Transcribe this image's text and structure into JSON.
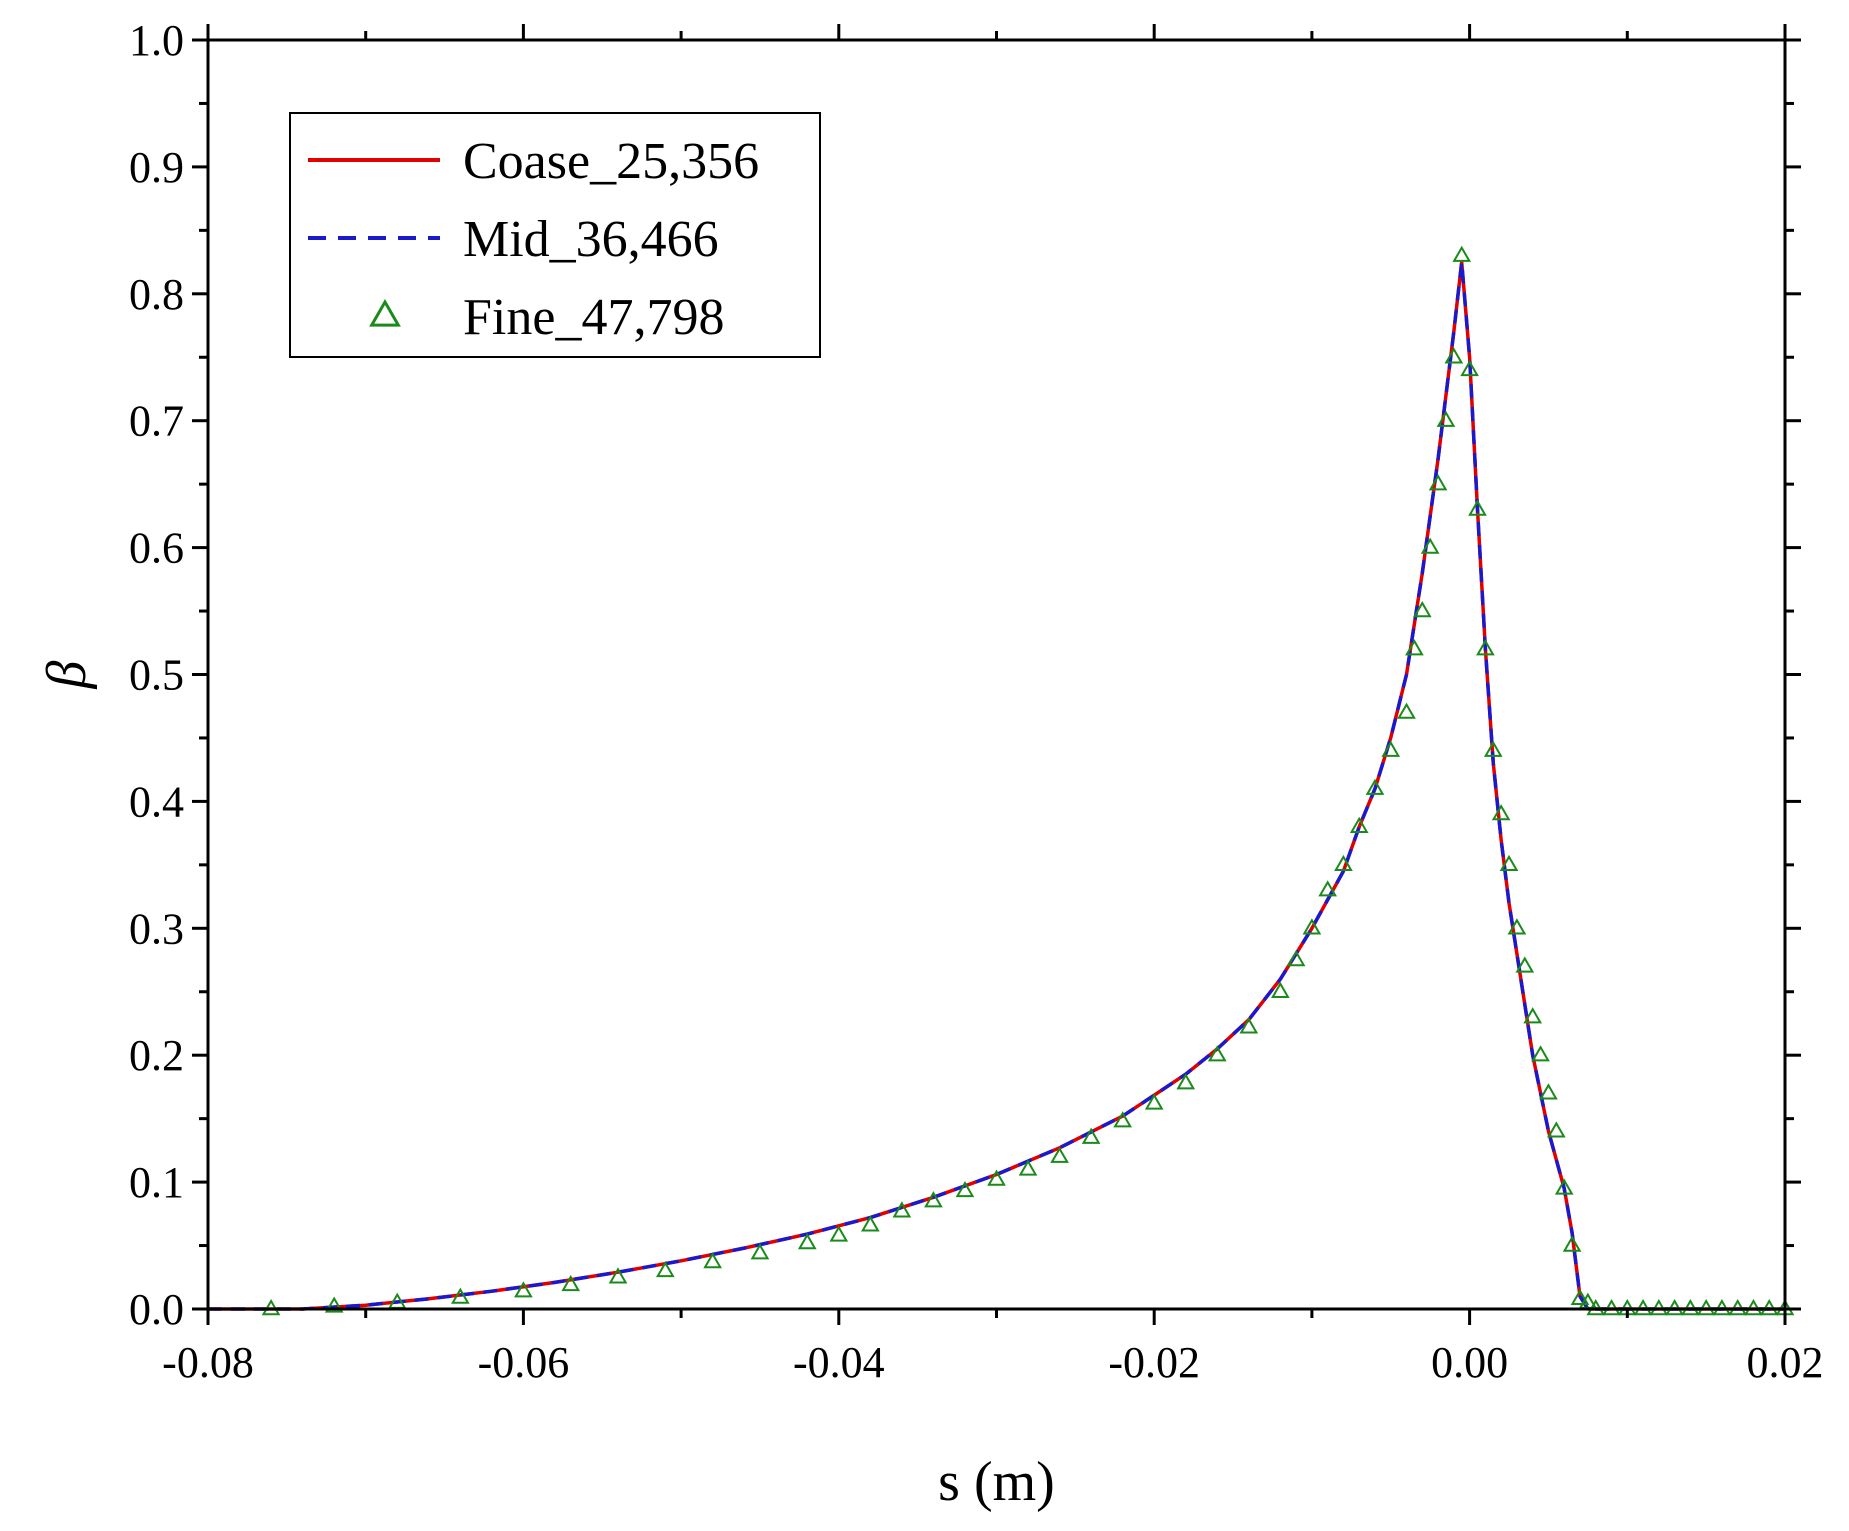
{
  "chart_data": {
    "type": "line",
    "title": "",
    "xlabel": "s (m)",
    "ylabel": "β",
    "xlim": [
      -0.08,
      0.02
    ],
    "ylim": [
      0.0,
      1.0
    ],
    "x_ticks": [
      -0.08,
      -0.06,
      -0.04,
      -0.02,
      0.0,
      0.02
    ],
    "x_tick_labels": [
      "-0.08",
      "-0.06",
      "-0.04",
      "-0.02",
      "0.00",
      "0.02"
    ],
    "y_ticks": [
      0.0,
      0.1,
      0.2,
      0.3,
      0.4,
      0.5,
      0.6,
      0.7,
      0.8,
      0.9,
      1.0
    ],
    "y_tick_labels": [
      "0.0",
      "0.1",
      "0.2",
      "0.3",
      "0.4",
      "0.5",
      "0.6",
      "0.7",
      "0.8",
      "0.9",
      "1.0"
    ],
    "grid": false,
    "legend_position": "top-left",
    "series": [
      {
        "name": "Coase_25,356",
        "style": "solid line",
        "color": "#e00000",
        "x": [
          -0.08,
          -0.074,
          -0.07,
          -0.066,
          -0.062,
          -0.058,
          -0.054,
          -0.05,
          -0.046,
          -0.042,
          -0.038,
          -0.034,
          -0.03,
          -0.026,
          -0.022,
          -0.018,
          -0.016,
          -0.014,
          -0.012,
          -0.01,
          -0.008,
          -0.007,
          -0.006,
          -0.005,
          -0.004,
          -0.003,
          -0.002,
          -0.001,
          -0.0005,
          0.0,
          0.0005,
          0.001,
          0.0015,
          0.002,
          0.0025,
          0.003,
          0.004,
          0.005,
          0.006,
          0.0065,
          0.007,
          0.0075,
          0.008,
          0.01,
          0.015,
          0.02
        ],
        "y": [
          0.0,
          0.0,
          0.003,
          0.008,
          0.014,
          0.021,
          0.029,
          0.038,
          0.048,
          0.059,
          0.072,
          0.088,
          0.106,
          0.127,
          0.152,
          0.185,
          0.205,
          0.228,
          0.26,
          0.3,
          0.345,
          0.38,
          0.41,
          0.45,
          0.5,
          0.58,
          0.67,
          0.77,
          0.825,
          0.75,
          0.63,
          0.52,
          0.43,
          0.37,
          0.32,
          0.28,
          0.2,
          0.14,
          0.095,
          0.06,
          0.01,
          0.0,
          0.0,
          0.0,
          0.0,
          0.0
        ]
      },
      {
        "name": "Mid_36,466",
        "style": "dashed line",
        "color": "#1a1acc",
        "x": [
          -0.08,
          -0.074,
          -0.07,
          -0.066,
          -0.062,
          -0.058,
          -0.054,
          -0.05,
          -0.046,
          -0.042,
          -0.038,
          -0.034,
          -0.03,
          -0.026,
          -0.022,
          -0.018,
          -0.016,
          -0.014,
          -0.012,
          -0.01,
          -0.008,
          -0.007,
          -0.006,
          -0.005,
          -0.004,
          -0.003,
          -0.002,
          -0.001,
          -0.0005,
          0.0,
          0.0005,
          0.001,
          0.0015,
          0.002,
          0.0025,
          0.003,
          0.004,
          0.005,
          0.006,
          0.0065,
          0.007,
          0.0075,
          0.008,
          0.01,
          0.015,
          0.02
        ],
        "y": [
          0.0,
          0.0,
          0.003,
          0.008,
          0.014,
          0.021,
          0.029,
          0.038,
          0.048,
          0.059,
          0.072,
          0.088,
          0.106,
          0.127,
          0.152,
          0.185,
          0.205,
          0.228,
          0.26,
          0.3,
          0.345,
          0.38,
          0.41,
          0.45,
          0.5,
          0.58,
          0.67,
          0.77,
          0.825,
          0.75,
          0.63,
          0.52,
          0.43,
          0.37,
          0.32,
          0.28,
          0.2,
          0.14,
          0.095,
          0.06,
          0.01,
          0.0,
          0.0,
          0.0,
          0.0,
          0.0
        ]
      },
      {
        "name": "Fine_47,798",
        "style": "open triangle markers",
        "color": "#1a8a1a",
        "x": [
          -0.076,
          -0.072,
          -0.068,
          -0.064,
          -0.06,
          -0.057,
          -0.054,
          -0.051,
          -0.048,
          -0.045,
          -0.042,
          -0.04,
          -0.038,
          -0.036,
          -0.034,
          -0.032,
          -0.03,
          -0.028,
          -0.026,
          -0.024,
          -0.022,
          -0.02,
          -0.018,
          -0.016,
          -0.014,
          -0.012,
          -0.011,
          -0.01,
          -0.009,
          -0.008,
          -0.007,
          -0.006,
          -0.005,
          -0.004,
          -0.0035,
          -0.003,
          -0.0025,
          -0.002,
          -0.0015,
          -0.001,
          -0.0005,
          0.0,
          0.0005,
          0.001,
          0.0015,
          0.002,
          0.0025,
          0.003,
          0.0035,
          0.004,
          0.0045,
          0.005,
          0.0055,
          0.006,
          0.0065,
          0.007,
          0.0075,
          0.008,
          0.009,
          0.01,
          0.011,
          0.012,
          0.013,
          0.014,
          0.015,
          0.016,
          0.017,
          0.018,
          0.019,
          0.02
        ],
        "y": [
          0.0,
          0.002,
          0.005,
          0.009,
          0.014,
          0.019,
          0.025,
          0.03,
          0.037,
          0.044,
          0.052,
          0.058,
          0.066,
          0.077,
          0.085,
          0.093,
          0.102,
          0.11,
          0.12,
          0.135,
          0.148,
          0.162,
          0.178,
          0.2,
          0.222,
          0.25,
          0.275,
          0.3,
          0.33,
          0.35,
          0.38,
          0.41,
          0.44,
          0.47,
          0.52,
          0.55,
          0.6,
          0.65,
          0.7,
          0.75,
          0.83,
          0.74,
          0.63,
          0.52,
          0.44,
          0.39,
          0.35,
          0.3,
          0.27,
          0.23,
          0.2,
          0.17,
          0.14,
          0.095,
          0.05,
          0.008,
          0.005,
          0.0,
          0.0,
          0.0,
          0.0,
          0.0,
          0.0,
          0.0,
          0.0,
          0.0,
          0.0,
          0.0,
          0.0,
          0.0
        ]
      }
    ]
  }
}
